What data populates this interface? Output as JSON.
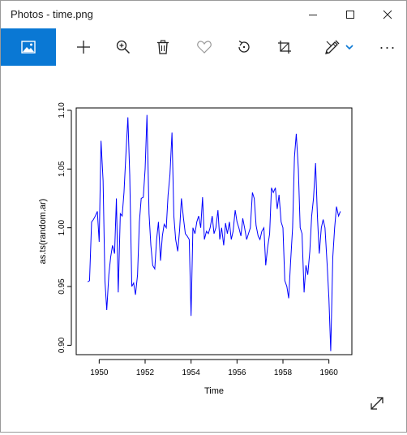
{
  "window": {
    "title": "Photos - time.png",
    "minimize_icon": "minimize-icon",
    "maximize_icon": "maximize-icon",
    "close_icon": "close-icon"
  },
  "toolbar": {
    "items": [
      {
        "name": "image-view",
        "icon": "image-icon"
      },
      {
        "name": "add",
        "icon": "plus-icon"
      },
      {
        "name": "zoom",
        "icon": "zoom-in-icon"
      },
      {
        "name": "delete",
        "icon": "trash-icon"
      },
      {
        "name": "favorite",
        "icon": "heart-icon"
      },
      {
        "name": "rotate",
        "icon": "rotate-icon"
      },
      {
        "name": "crop",
        "icon": "crop-icon"
      },
      {
        "name": "edit",
        "icon": "edit-draw-icon"
      },
      {
        "name": "more",
        "icon": "more-icon",
        "label": "···"
      }
    ],
    "accent": "#0a78d4"
  },
  "chart_data": {
    "type": "line",
    "title": "",
    "xlabel": "Time",
    "ylabel": "as.ts(random.ar)",
    "xlim": [
      1949.0,
      1961.0
    ],
    "ylim": [
      0.892,
      1.102
    ],
    "xticks": [
      1950,
      1952,
      1954,
      1956,
      1958,
      1960
    ],
    "yticks": [
      0.9,
      0.95,
      1.0,
      1.05,
      1.1
    ],
    "ytick_labels": [
      "0.90",
      "0.95",
      "1.00",
      "1.05",
      "1.10"
    ],
    "line_color": "#0000ff",
    "series": [
      {
        "x": [
          1949.5,
          1949.58,
          1949.67,
          1949.75,
          1949.83,
          1949.92,
          1950.0,
          1950.08,
          1950.17,
          1950.25,
          1950.33,
          1950.42,
          1950.5,
          1950.58,
          1950.67,
          1950.75,
          1950.83,
          1950.92,
          1951.0,
          1951.08,
          1951.17,
          1951.25,
          1951.33,
          1951.42,
          1951.5,
          1951.58,
          1951.67,
          1951.75,
          1951.83,
          1951.92,
          1952.0,
          1952.08,
          1952.17,
          1952.25,
          1952.33,
          1952.42,
          1952.5,
          1952.58,
          1952.67,
          1952.75,
          1952.83,
          1952.92,
          1953.0,
          1953.08,
          1953.17,
          1953.25,
          1953.33,
          1953.42,
          1953.5,
          1953.58,
          1953.67,
          1953.75,
          1953.83,
          1953.92,
          1954.0,
          1954.08,
          1954.17,
          1954.25,
          1954.33,
          1954.42,
          1954.5,
          1954.58,
          1954.67,
          1954.75,
          1954.83,
          1954.92,
          1955.0,
          1955.08,
          1955.17,
          1955.25,
          1955.33,
          1955.42,
          1955.5,
          1955.58,
          1955.67,
          1955.75,
          1955.83,
          1955.92,
          1956.0,
          1956.08,
          1956.17,
          1956.25,
          1956.33,
          1956.42,
          1956.5,
          1956.58,
          1956.67,
          1956.75,
          1956.83,
          1956.92,
          1957.0,
          1957.08,
          1957.17,
          1957.25,
          1957.33,
          1957.42,
          1957.5,
          1957.58,
          1957.67,
          1957.75,
          1957.83,
          1957.92,
          1958.0,
          1958.08,
          1958.17,
          1958.25,
          1958.33,
          1958.42,
          1958.5,
          1958.58,
          1958.67,
          1958.75,
          1958.83,
          1958.92,
          1959.0,
          1959.08,
          1959.17,
          1959.25,
          1959.33,
          1959.42,
          1959.5,
          1959.58,
          1959.67,
          1959.75,
          1959.83,
          1959.92,
          1960.0,
          1960.08,
          1960.17,
          1960.25,
          1960.33,
          1960.42,
          1960.5
        ],
        "y": [
          0.954,
          0.955,
          1.005,
          1.007,
          1.01,
          1.014,
          0.988,
          1.074,
          1.04,
          0.955,
          0.93,
          0.96,
          0.975,
          0.985,
          0.978,
          1.025,
          0.945,
          1.012,
          1.01,
          1.03,
          1.065,
          1.094,
          1.045,
          0.95,
          0.953,
          0.943,
          0.96,
          1.005,
          1.025,
          1.026,
          1.05,
          1.096,
          1.012,
          0.985,
          0.968,
          0.965,
          0.99,
          1.005,
          0.972,
          0.993,
          1.003,
          1.0,
          1.028,
          1.045,
          1.081,
          1.01,
          0.99,
          0.98,
          0.998,
          1.025,
          1.008,
          0.995,
          0.993,
          0.99,
          0.925,
          1.0,
          0.995,
          1.005,
          1.01,
          1.0,
          1.026,
          0.99,
          0.997,
          0.995,
          1.0,
          1.01,
          0.995,
          1.0,
          1.015,
          0.99,
          1.0,
          0.985,
          1.004,
          0.995,
          1.005,
          0.99,
          0.997,
          1.015,
          1.005,
          1.0,
          0.993,
          1.008,
          1.0,
          0.99,
          0.995,
          1.0,
          1.03,
          1.025,
          1.002,
          0.993,
          0.99,
          0.997,
          1.0,
          0.968,
          0.983,
          0.995,
          1.034,
          1.03,
          1.034,
          1.016,
          1.028,
          1.005,
          1.0,
          0.955,
          0.95,
          0.94,
          0.97,
          1.0,
          1.06,
          1.08,
          1.05,
          1.0,
          0.995,
          0.945,
          0.968,
          0.96,
          0.98,
          1.01,
          1.025,
          1.055,
          1.01,
          0.978,
          1.0,
          1.007,
          1.0,
          0.97,
          0.94,
          0.895,
          0.975,
          1.0,
          1.018,
          1.01,
          1.014
        ]
      }
    ]
  }
}
